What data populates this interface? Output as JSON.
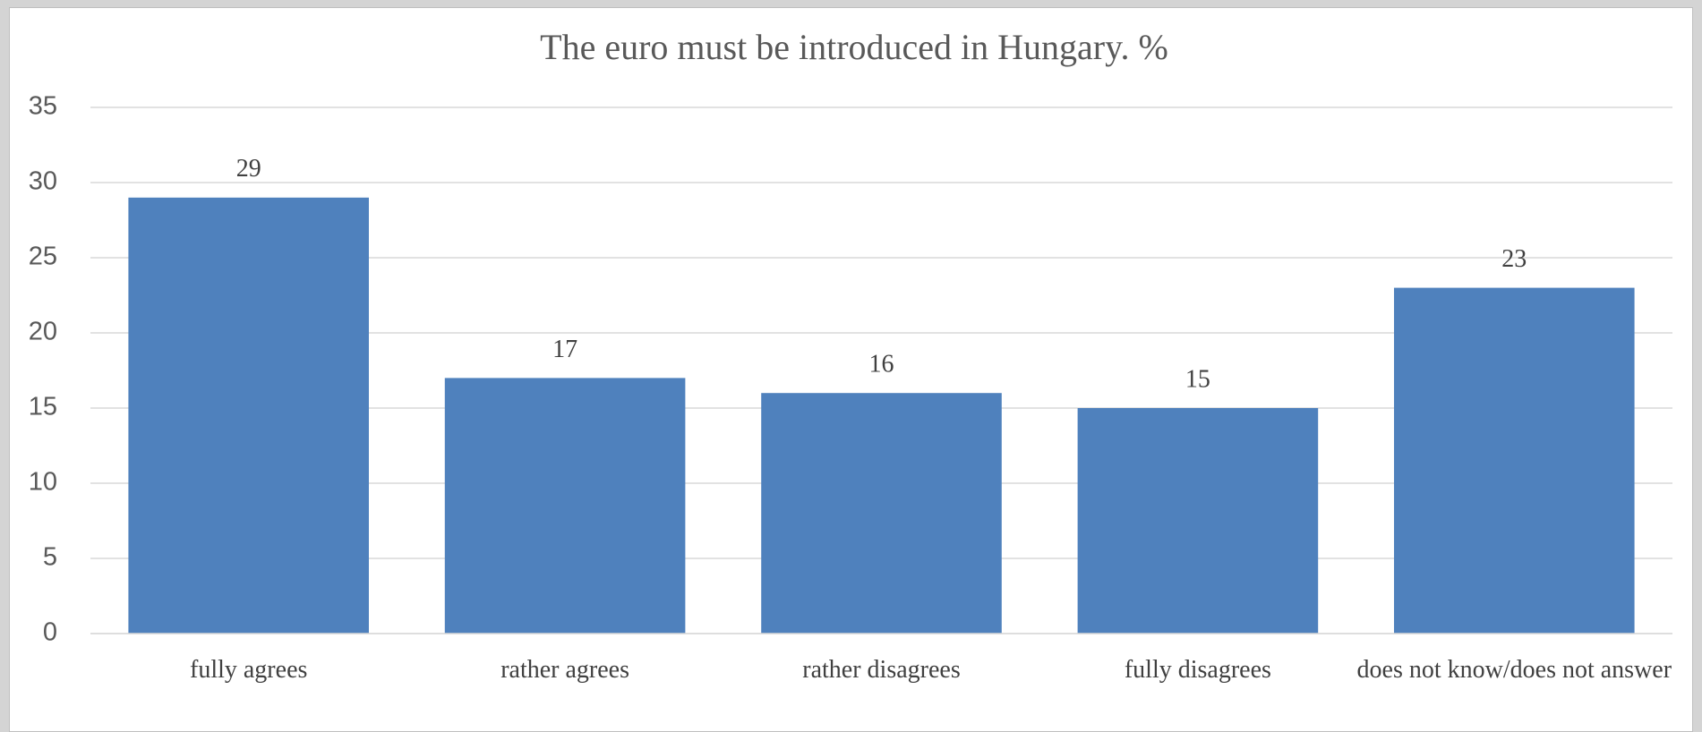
{
  "chart_data": {
    "type": "bar",
    "title": "The euro must be introduced in Hungary. %",
    "categories": [
      "fully agrees",
      "rather agrees",
      "rather disagrees",
      "fully disagrees",
      "does not know/does not answer"
    ],
    "values": [
      29,
      17,
      16,
      15,
      23
    ],
    "color": "#4f81bd",
    "ylim": [
      0,
      35
    ],
    "yticks": [
      0,
      5,
      10,
      15,
      20,
      25,
      30,
      35
    ],
    "grid": true
  }
}
